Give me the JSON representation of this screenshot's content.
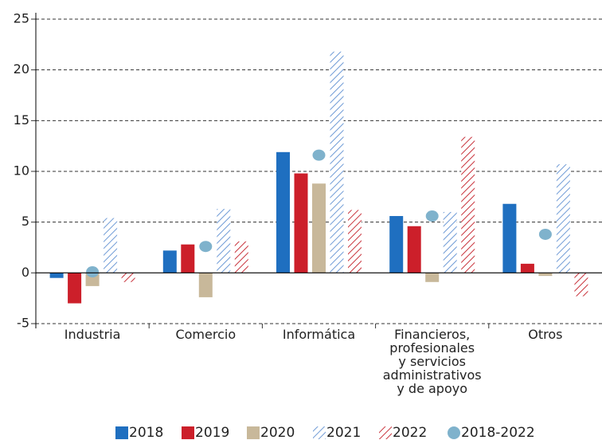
{
  "chart_data": {
    "type": "bar",
    "categories": [
      "Industria",
      "Comercio",
      "Informática",
      "Financieros,\nprofesionales\ny servicios\nadministrativos\ny de apoyo",
      "Otros"
    ],
    "series": [
      {
        "name": "2018",
        "color": "#1f6fc0",
        "values": [
          -0.5,
          2.2,
          11.9,
          5.6,
          6.8
        ]
      },
      {
        "name": "2019",
        "color": "#cc1f2a",
        "values": [
          -3.0,
          2.8,
          9.8,
          4.6,
          0.9
        ]
      },
      {
        "name": "2020",
        "color": "#c8b89a",
        "values": [
          -1.3,
          -2.4,
          8.8,
          -0.9,
          -0.3
        ]
      },
      {
        "name": "2021",
        "color": "#6f9bd6",
        "hatch": true,
        "values": [
          5.4,
          6.3,
          21.8,
          6.0,
          10.7
        ]
      },
      {
        "name": "2022",
        "color": "#c9343d",
        "hatch": true,
        "values": [
          -0.9,
          3.1,
          6.2,
          13.4,
          -2.3
        ]
      },
      {
        "name": "2018-2022",
        "color": "#7fb2cc",
        "marker": "circle",
        "values": [
          0.1,
          2.6,
          11.6,
          5.6,
          3.8
        ]
      }
    ],
    "ylim": [
      -5,
      25
    ],
    "yticks": [
      -5,
      0,
      5,
      10,
      15,
      20,
      25
    ],
    "grid": true,
    "legend": "bottom"
  }
}
